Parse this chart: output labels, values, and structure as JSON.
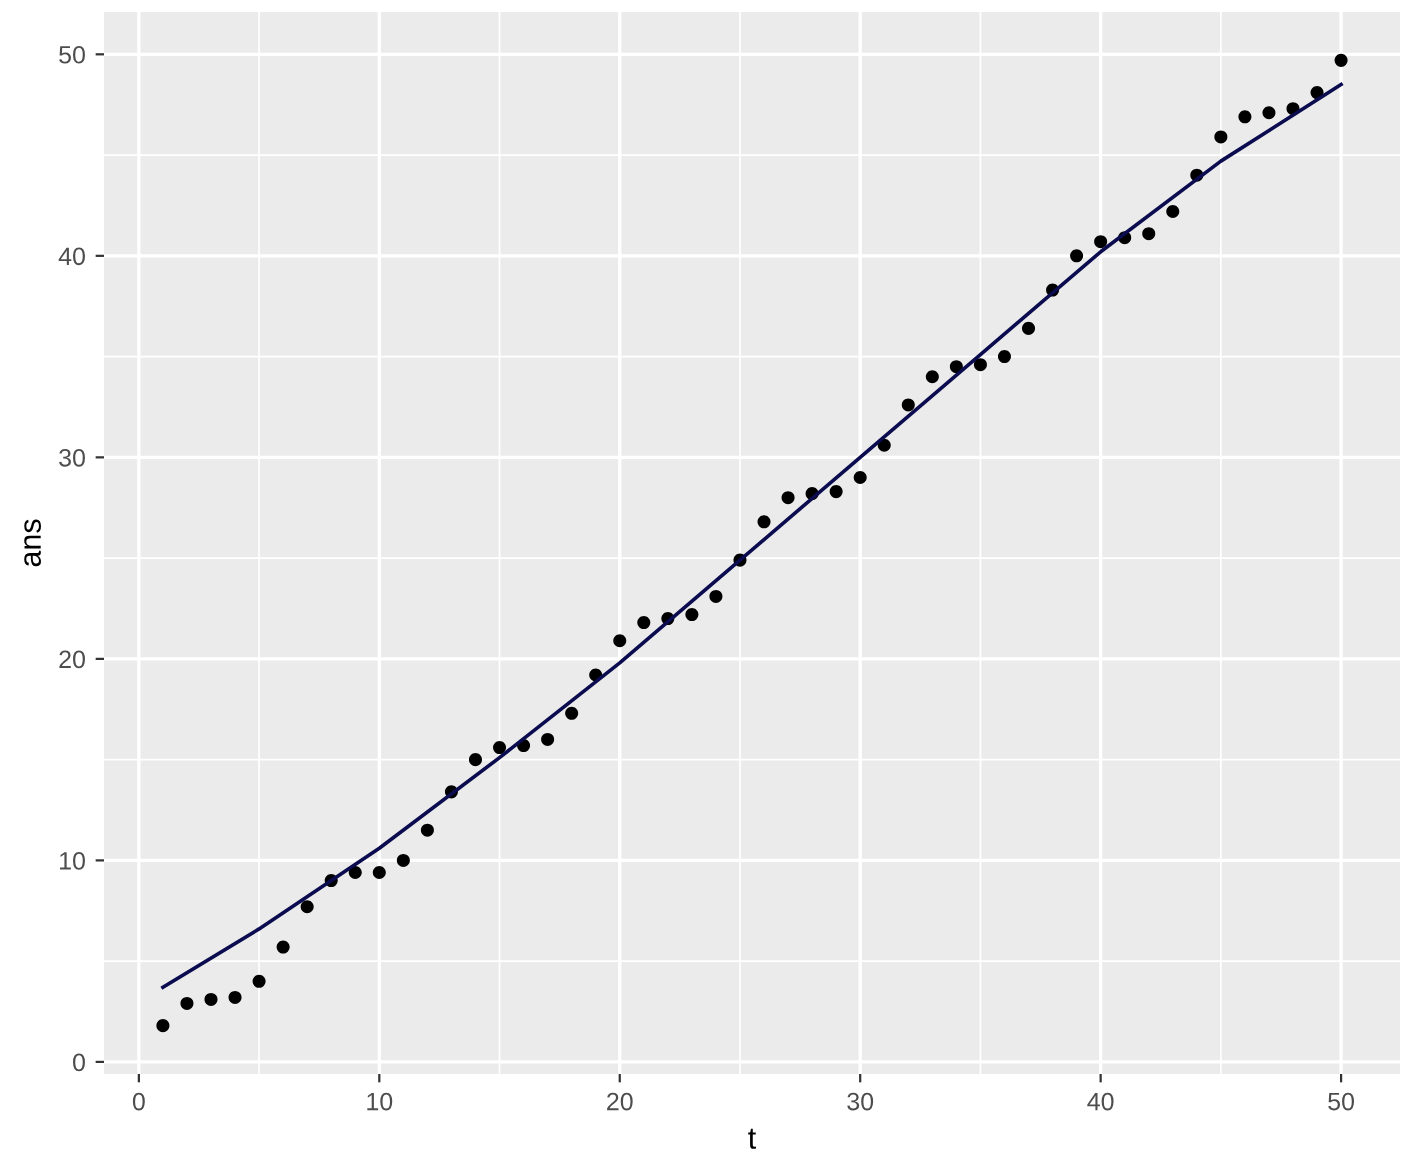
{
  "chart_data": {
    "type": "scatter",
    "xlabel": "t",
    "ylabel": "ans",
    "grid": true,
    "marker": "circle",
    "xlim": [
      -1.45,
      52.45
    ],
    "ylim": [
      -0.6,
      52.1
    ],
    "xticks": [
      0,
      10,
      20,
      30,
      40,
      50
    ],
    "yticks": [
      0,
      10,
      20,
      30,
      40,
      50
    ],
    "series": [
      {
        "color": "#000000",
        "x": [
          1,
          2,
          3,
          4,
          5,
          6,
          7,
          8,
          9,
          10,
          11,
          12,
          13,
          14,
          15,
          16,
          17,
          18,
          19,
          20,
          21,
          22,
          23,
          24,
          25,
          26,
          27,
          28,
          29,
          30,
          31,
          32,
          33,
          34,
          35,
          36,
          37,
          38,
          39,
          40,
          41,
          42,
          43,
          44,
          45,
          46,
          47,
          48,
          49,
          50
        ],
        "values": [
          1.8,
          2.9,
          3.1,
          3.2,
          4.0,
          5.7,
          7.7,
          9.0,
          9.4,
          9.4,
          10.0,
          11.5,
          13.4,
          15.0,
          15.6,
          15.7,
          16.0,
          17.3,
          19.2,
          20.9,
          21.8,
          22.0,
          22.2,
          23.1,
          24.9,
          26.8,
          28.0,
          28.2,
          28.3,
          29.0,
          30.6,
          32.6,
          34.0,
          34.5,
          34.6,
          35.0,
          36.4,
          38.3,
          40.0,
          40.7,
          40.9,
          41.1,
          42.2,
          44.0,
          45.9,
          46.9,
          47.1,
          47.3,
          48.1,
          49.7
        ]
      },
      {
        "type": "line",
        "color": "#0b0b4f",
        "marker": "none",
        "x": [
          1,
          5,
          10,
          15,
          20,
          25,
          30,
          35,
          40,
          45,
          50
        ],
        "values": [
          3.7,
          6.6,
          10.6,
          15.1,
          19.8,
          24.9,
          30.0,
          35.1,
          40.2,
          44.7,
          48.5
        ]
      }
    ]
  }
}
